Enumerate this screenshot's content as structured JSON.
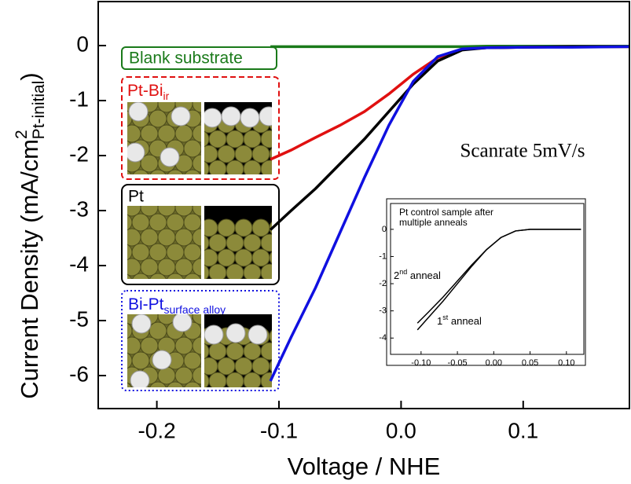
{
  "chart_data": [
    {
      "type": "line",
      "xlabel": "Voltage / NHE",
      "ylabel": {
        "text": "Current Density (mA/cm",
        "sup": "2",
        "sub": "Pt-initial",
        "end": ")"
      },
      "annotation": "Scanrate 5mV/s",
      "x": [
        -0.107,
        -0.09,
        -0.07,
        -0.05,
        -0.03,
        -0.01,
        0.01,
        0.03,
        0.05,
        0.07,
        0.1,
        0.14,
        0.187
      ],
      "series": [
        {
          "name": "Blank substrate",
          "color": "#1a7a1a",
          "values": [
            -0.02,
            -0.02,
            -0.02,
            -0.02,
            -0.02,
            -0.02,
            -0.02,
            -0.02,
            -0.02,
            -0.01,
            -0.01,
            -0.01,
            -0.01
          ]
        },
        {
          "name": "Pt-Bi",
          "subscript": "ir",
          "color": "#e01010",
          "values": [
            -2.07,
            -1.9,
            -1.67,
            -1.45,
            -1.2,
            -0.88,
            -0.52,
            -0.22,
            -0.07,
            -0.04,
            -0.03,
            -0.02,
            -0.02
          ]
        },
        {
          "name": "Pt",
          "color": "#000000",
          "values": [
            -3.35,
            -3.0,
            -2.6,
            -2.15,
            -1.7,
            -1.2,
            -0.7,
            -0.28,
            -0.08,
            -0.04,
            -0.03,
            -0.02,
            -0.02
          ]
        },
        {
          "name": "Bi-Pt",
          "subscript": "surface alloy",
          "color": "#1010e0",
          "values": [
            -6.1,
            -5.3,
            -4.4,
            -3.4,
            -2.4,
            -1.45,
            -0.65,
            -0.2,
            -0.06,
            -0.04,
            -0.03,
            -0.03,
            -0.02
          ]
        }
      ],
      "xlim": [
        -0.248,
        0.187
      ],
      "ylim": [
        -6.6,
        0.8
      ],
      "xticks": [
        -0.2,
        -0.1,
        {
          "value": 0,
          "label": "0.0"
        },
        0.1
      ],
      "yticks": [
        0,
        -1,
        -2,
        -3,
        -4,
        -5,
        -6
      ]
    },
    {
      "type": "line",
      "title_lines": [
        "Pt control sample after",
        "multiple anneals"
      ],
      "annotations": [
        {
          "text": "2",
          "sup": "nd",
          "rest": " anneal"
        },
        {
          "text": "1",
          "sup": "st",
          "rest": " anneal"
        }
      ],
      "x": [
        -0.105,
        -0.09,
        -0.07,
        -0.05,
        -0.03,
        -0.01,
        0.01,
        0.03,
        0.05,
        0.08,
        0.12
      ],
      "series": [
        {
          "color": "#000000",
          "values": [
            -3.7,
            -3.25,
            -2.65,
            -2.0,
            -1.35,
            -0.75,
            -0.3,
            -0.06,
            0,
            0,
            0
          ]
        },
        {
          "color": "#000000",
          "values": [
            -3.45,
            -3.05,
            -2.5,
            -1.9,
            -1.3,
            -0.75,
            -0.3,
            -0.06,
            0,
            0,
            0
          ]
        }
      ],
      "xlim": [
        -0.142,
        0.124
      ],
      "ylim": [
        -4.6,
        0.95
      ],
      "xticks": [
        {
          "value": -0.1,
          "label": "-0.10"
        },
        {
          "value": -0.05,
          "label": "-0.05"
        },
        {
          "value": 0,
          "label": "0.00"
        },
        {
          "value": 0.05,
          "label": "0.05"
        },
        {
          "value": 0.1,
          "label": "0.10"
        }
      ],
      "yticks": [
        0,
        -1,
        -2,
        -3,
        -4
      ]
    }
  ]
}
